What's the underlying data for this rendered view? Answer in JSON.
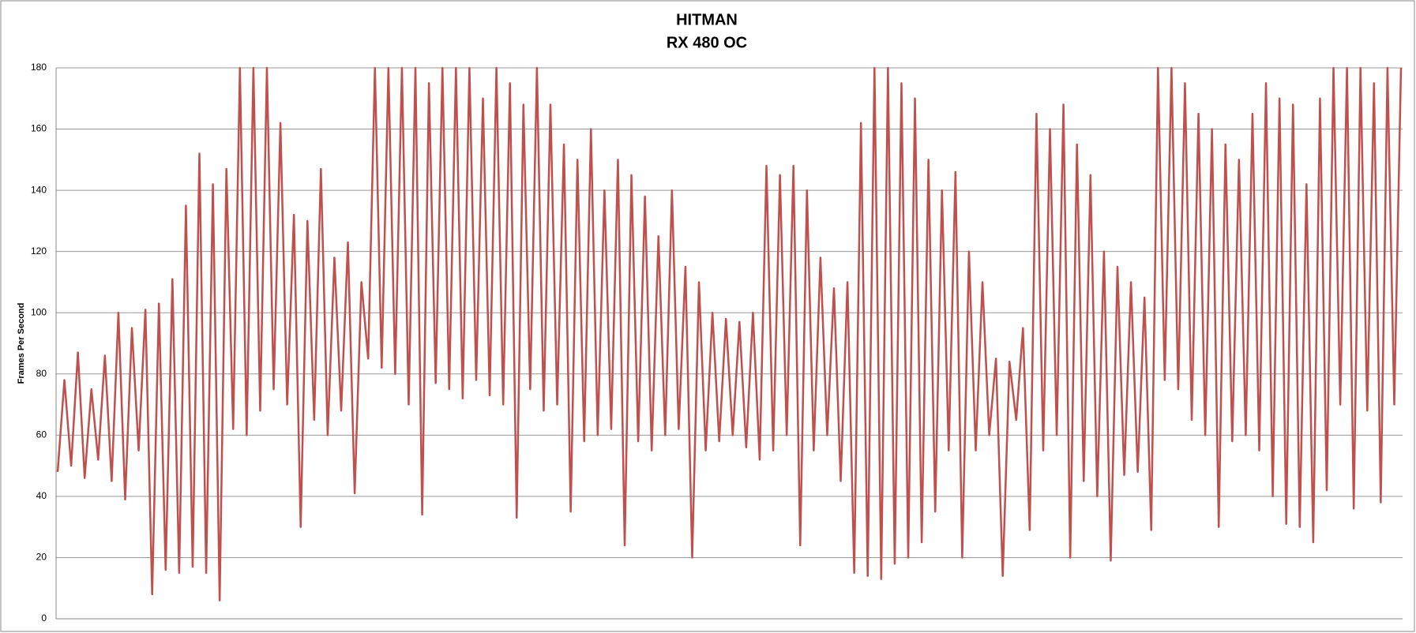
{
  "chart_data": {
    "type": "line",
    "title": "HITMAN",
    "subtitle": "RX 480 OC",
    "y_label": "Frames Per Second",
    "series": [
      {
        "color": "#c0504d",
        "values": [
          48,
          78,
          50,
          87,
          46,
          75,
          52,
          86,
          45,
          100,
          39,
          95,
          55,
          101,
          8,
          103,
          16,
          111,
          15,
          135,
          17,
          152,
          15,
          142,
          6,
          147,
          62,
          180,
          60,
          180,
          68,
          180,
          75,
          162,
          70,
          132,
          30,
          130,
          65,
          147,
          60,
          118,
          68,
          123,
          41,
          110,
          85,
          180,
          82,
          180,
          80,
          180,
          70,
          180,
          34,
          175,
          77,
          180,
          75,
          180,
          72,
          180,
          78,
          170,
          73,
          180,
          70,
          175,
          33,
          168,
          75,
          180,
          68,
          168,
          70,
          155,
          35,
          150,
          58,
          160,
          60,
          140,
          62,
          150,
          24,
          145,
          58,
          138,
          55,
          125,
          60,
          140,
          62,
          115,
          20,
          110,
          55,
          100,
          58,
          98,
          60,
          97,
          56,
          100,
          52,
          148,
          55,
          145,
          60,
          148,
          24,
          140,
          55,
          118,
          60,
          108,
          45,
          110,
          15,
          162,
          14,
          180,
          13,
          180,
          18,
          175,
          20,
          170,
          25,
          150,
          35,
          140,
          55,
          146,
          20,
          120,
          55,
          110,
          60,
          85,
          14,
          84,
          65,
          95,
          29,
          165,
          55,
          160,
          60,
          168,
          20,
          155,
          45,
          145,
          40,
          120,
          19,
          115,
          47,
          110,
          48,
          105,
          29,
          180,
          78,
          180,
          75,
          175,
          65,
          165,
          60,
          160,
          30,
          155,
          58,
          150,
          60,
          165,
          55,
          175,
          40,
          170,
          31,
          168,
          30,
          142,
          25,
          170,
          42,
          180,
          70,
          180,
          36,
          180,
          68,
          175,
          38,
          180,
          70,
          180
        ]
      }
    ],
    "ylim": [
      0,
      180
    ],
    "yticks": [
      0,
      20,
      40,
      60,
      80,
      100,
      120,
      140,
      160,
      180
    ],
    "grid": true
  }
}
